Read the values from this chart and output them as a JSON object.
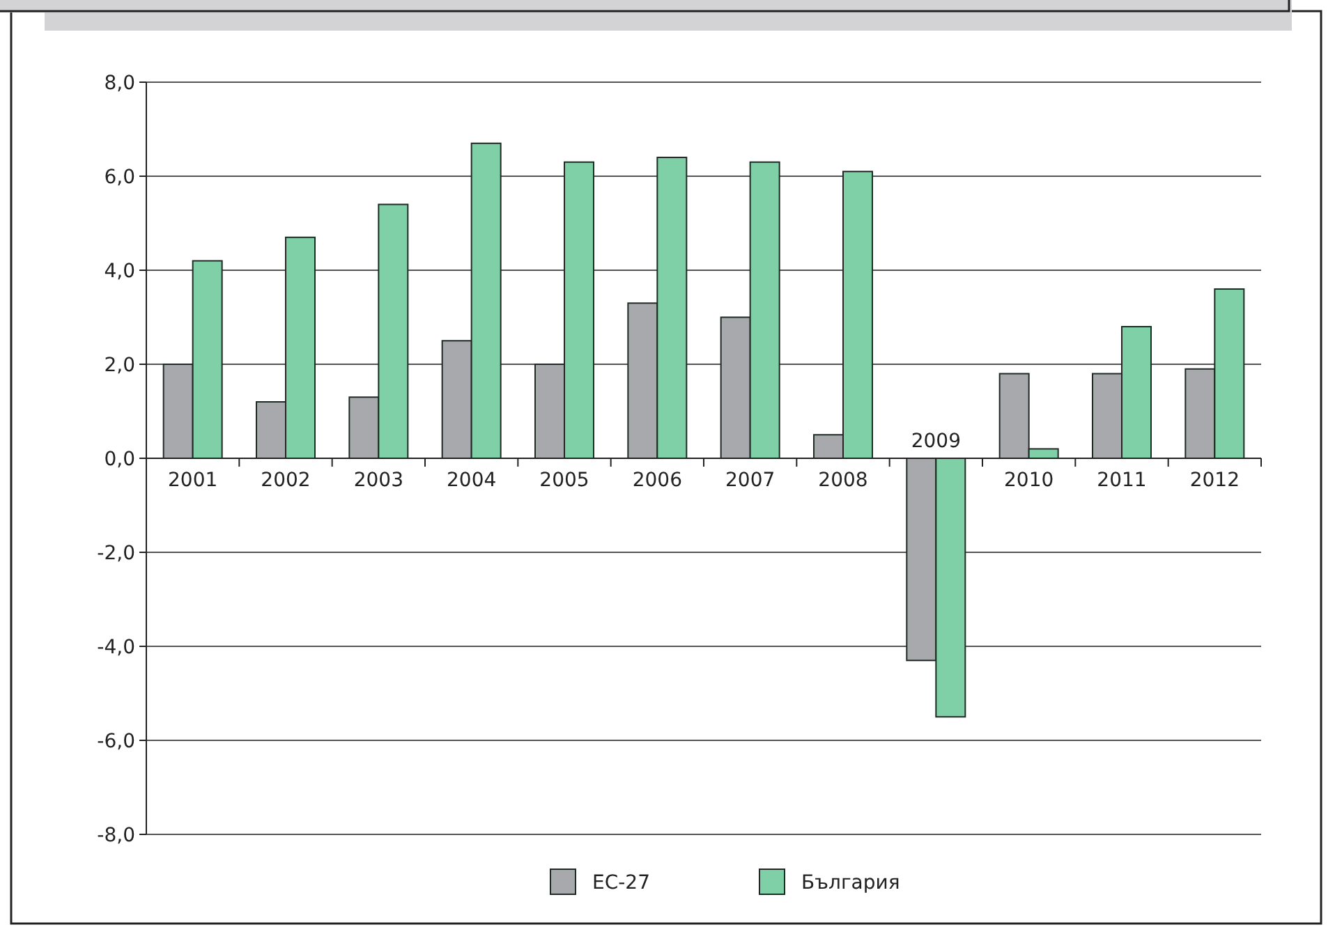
{
  "chart_data": {
    "type": "bar",
    "categories": [
      "2001",
      "2002",
      "2003",
      "2004",
      "2005",
      "2006",
      "2007",
      "2008",
      "2009",
      "2010",
      "2011",
      "2012"
    ],
    "series": [
      {
        "name": "ЕС-27",
        "color": "#a7a9ac",
        "values": [
          2.0,
          1.2,
          1.3,
          2.5,
          2.0,
          3.3,
          3.0,
          0.5,
          -4.3,
          1.8,
          1.8,
          1.9
        ]
      },
      {
        "name": "България",
        "color": "#7fd0a6",
        "values": [
          4.2,
          4.7,
          5.4,
          6.7,
          6.3,
          6.4,
          6.3,
          6.1,
          -5.5,
          0.2,
          2.8,
          3.6
        ]
      }
    ],
    "ylim": [
      -8,
      8
    ],
    "yticks": [
      {
        "value": -8,
        "label": "-8,0"
      },
      {
        "value": -6,
        "label": "-6,0"
      },
      {
        "value": -4,
        "label": "-4,0"
      },
      {
        "value": -2,
        "label": "-2,0"
      },
      {
        "value": 0,
        "label": "0,0"
      },
      {
        "value": 2,
        "label": "2,0"
      },
      {
        "value": 4,
        "label": "4,0"
      },
      {
        "value": 6,
        "label": "6,0"
      },
      {
        "value": 8,
        "label": "8,0"
      }
    ],
    "grid": "y",
    "legend": "bottom"
  }
}
